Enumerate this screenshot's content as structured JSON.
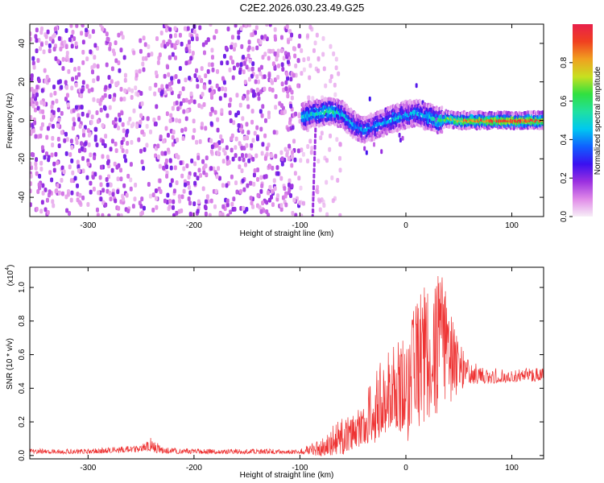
{
  "title": "C2E2.2026.030.23.49.G25",
  "chart_data": [
    {
      "type": "heatmap",
      "xlabel": "Height of straight line (km)",
      "ylabel": "Frequency (Hz)",
      "xlim": [
        -355,
        130
      ],
      "ylim": [
        -50,
        50
      ],
      "xticks": [
        -300,
        -200,
        -100,
        0,
        100
      ],
      "yticks": [
        -40,
        -20,
        0,
        20,
        40
      ],
      "colorbar": {
        "label": "Normalized spectral amplitude",
        "range": [
          0,
          1
        ],
        "ticks": [
          "0.0",
          "0.2",
          "0.4",
          "0.6",
          "0.8"
        ],
        "tick_values": [
          0.0,
          0.2,
          0.4,
          0.6,
          0.8
        ],
        "colormap": [
          "#f7eef7",
          "#e08ae8",
          "#9b30e0",
          "#3a10f0",
          "#1060ff",
          "#00c8f0",
          "#20e0a0",
          "#30e040",
          "#c8e020",
          "#f0a020",
          "#f04020",
          "#e8204a"
        ]
      },
      "features": {
        "noise_region_x": [
          -355,
          -100
        ],
        "signal_track": {
          "x": [
            -98,
            -90,
            -80,
            -70,
            -60,
            -50,
            -40,
            -30,
            -20,
            -10,
            0,
            10,
            20,
            30,
            40,
            50,
            60,
            80,
            100,
            130
          ],
          "freq": [
            2,
            3,
            4,
            5,
            3,
            -2,
            -5,
            -3,
            -1,
            1,
            3,
            4,
            2,
            0,
            1,
            0,
            0,
            0,
            0,
            0
          ],
          "amplitude": [
            0.45,
            0.5,
            0.5,
            0.55,
            0.45,
            0.4,
            0.4,
            0.4,
            0.4,
            0.45,
            0.4,
            0.4,
            0.45,
            0.55,
            0.7,
            0.8,
            0.85,
            0.9,
            0.9,
            0.9
          ]
        }
      }
    },
    {
      "type": "line",
      "xlabel": "Height of straight line (km)",
      "ylabel": "SNR (10 * v/v)",
      "y_multiplier": "(x10",
      "y_multiplier_exp": "4",
      "y_multiplier_close": ")",
      "xlim": [
        -355,
        130
      ],
      "ylim": [
        -0.02,
        1.12
      ],
      "xticks": [
        -300,
        -200,
        -100,
        0,
        100
      ],
      "yticks": [
        "0.0",
        "0.2",
        "0.4",
        "0.6",
        "0.8",
        "1.0"
      ],
      "ytick_values": [
        0.0,
        0.2,
        0.4,
        0.6,
        0.8,
        1.0
      ],
      "color": "#ee3333",
      "series": [
        {
          "x": [
            -355,
            -300,
            -250,
            -240,
            -230,
            -200,
            -150,
            -100,
            -80,
            -70,
            -60,
            -50,
            -40,
            -30,
            -20,
            -10,
            0,
            10,
            20,
            30,
            35,
            40,
            50,
            60,
            70,
            80,
            100,
            130
          ],
          "values": [
            0.02,
            0.02,
            0.04,
            0.06,
            0.03,
            0.02,
            0.02,
            0.02,
            0.03,
            0.07,
            0.09,
            0.1,
            0.13,
            0.2,
            0.3,
            0.36,
            0.42,
            0.55,
            0.6,
            0.75,
            0.8,
            0.62,
            0.52,
            0.48,
            0.47,
            0.46,
            0.46,
            0.47
          ],
          "envelope_max": [
            0.04,
            0.04,
            0.06,
            0.11,
            0.05,
            0.04,
            0.04,
            0.04,
            0.1,
            0.2,
            0.22,
            0.25,
            0.34,
            0.5,
            0.67,
            0.72,
            0.76,
            0.95,
            1.02,
            1.1,
            1.07,
            0.9,
            0.67,
            0.58,
            0.53,
            0.52,
            0.52,
            0.52
          ],
          "envelope_min": [
            0.01,
            0.01,
            0.02,
            0.02,
            0.01,
            0.01,
            0.01,
            0.01,
            0.0,
            0.0,
            0.0,
            0.02,
            0.05,
            0.1,
            0.12,
            0.17,
            0.05,
            0.08,
            0.22,
            0.24,
            0.25,
            0.3,
            0.38,
            0.42,
            0.42,
            0.43,
            0.44,
            0.44
          ]
        }
      ]
    }
  ]
}
